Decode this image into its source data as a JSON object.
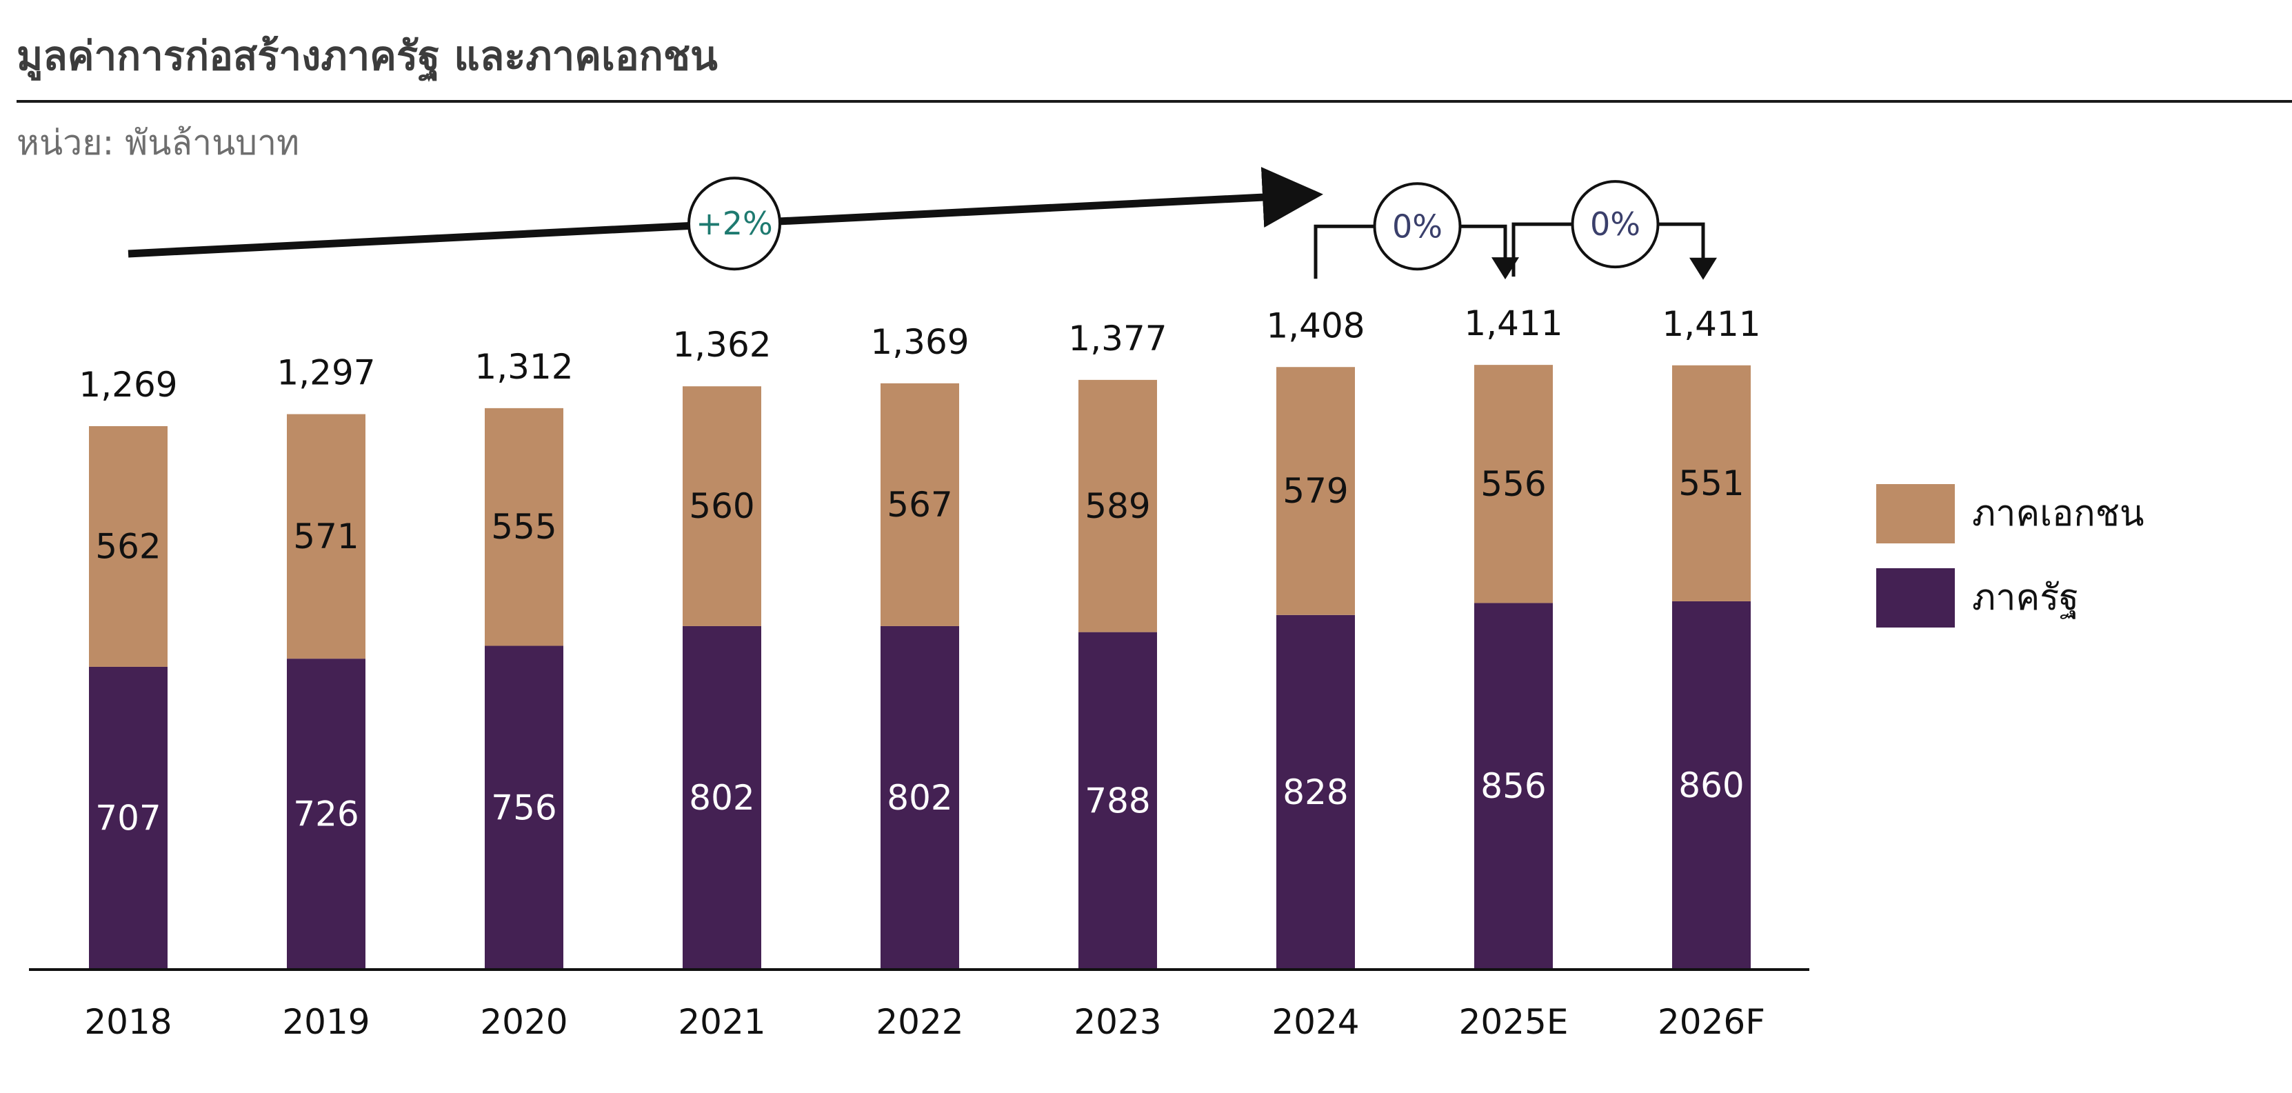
{
  "title": "มูลค่าการก่อสร้างภาครัฐ และภาคเอกชน",
  "unit_label": "หน่วย: พันล้านบาท",
  "colors": {
    "private": "#bd8c66",
    "public": "#442153",
    "axis": "#111111",
    "growth_text": "#1e7a70",
    "pct_text": "#3a3f6b"
  },
  "chart_data": {
    "type": "bar",
    "stacked": true,
    "categories": [
      "2018",
      "2019",
      "2020",
      "2021",
      "2022",
      "2023",
      "2024",
      "2025E",
      "2026F"
    ],
    "series": [
      {
        "name": "ภาครัฐ",
        "values": [
          707,
          726,
          756,
          802,
          802,
          788,
          828,
          856,
          860
        ]
      },
      {
        "name": "ภาคเอกชน",
        "values": [
          562,
          571,
          555,
          560,
          567,
          589,
          579,
          556,
          551
        ]
      }
    ],
    "totals": [
      "1,269",
      "1,297",
      "1,312",
      "1,362",
      "1,369",
      "1,377",
      "1,408",
      "1,411",
      "1,411"
    ],
    "legend": [
      "ภาคเอกชน",
      "ภาครัฐ"
    ],
    "legend_position": "right",
    "ylim": [
      0,
      1500
    ],
    "annotations": [
      {
        "label": "+2%",
        "type": "trend-arrow",
        "from": "2018",
        "to": "2024"
      },
      {
        "label": "0%",
        "type": "step-arrow",
        "from": "2024",
        "to": "2025E"
      },
      {
        "label": "0%",
        "type": "step-arrow",
        "from": "2025E",
        "to": "2026F"
      }
    ]
  }
}
